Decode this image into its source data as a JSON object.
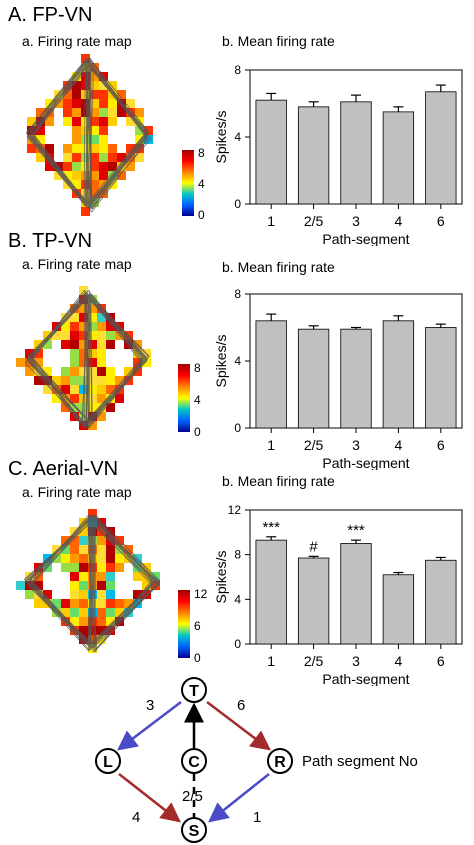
{
  "panels": [
    {
      "title": "A.  FP-VN",
      "map_title": "a.  Firing rate map",
      "bar_title": "b.  Mean firing rate",
      "colorbar": {
        "ticks": [
          "8",
          "4",
          "0"
        ],
        "max": 8
      }
    },
    {
      "title": "B.  TP-VN",
      "map_title": "a.  Firing rate map",
      "bar_title": "b.  Mean firing rate",
      "colorbar": {
        "ticks": [
          "8",
          "4",
          "0"
        ],
        "max": 8
      }
    },
    {
      "title": "C.  Aerial-VN",
      "map_title": "a.  Firing rate map",
      "bar_title": "b.  Mean firing rate",
      "colorbar": {
        "ticks": [
          "12",
          "6",
          "0"
        ],
        "max": 12
      }
    }
  ],
  "chart_data": [
    {
      "type": "bar",
      "categories": [
        "1",
        "2/5",
        "3",
        "4",
        "6"
      ],
      "values": [
        6.2,
        5.8,
        6.1,
        5.5,
        6.7
      ],
      "errors": [
        0.4,
        0.3,
        0.4,
        0.3,
        0.4
      ],
      "annotations": [
        "",
        "",
        "",
        "",
        ""
      ],
      "xlabel": "Path-segment",
      "ylabel": "Spikes/s",
      "ylim": [
        0,
        8
      ],
      "yticks": [
        0,
        4,
        8
      ]
    },
    {
      "type": "bar",
      "categories": [
        "1",
        "2/5",
        "3",
        "4",
        "6"
      ],
      "values": [
        6.4,
        5.9,
        5.9,
        6.4,
        6.0
      ],
      "errors": [
        0.4,
        0.2,
        0.1,
        0.3,
        0.2
      ],
      "annotations": [
        "",
        "",
        "",
        "",
        ""
      ],
      "xlabel": "Path-segment",
      "ylabel": "Spikes/s",
      "ylim": [
        0,
        8
      ],
      "yticks": [
        0,
        4,
        8
      ]
    },
    {
      "type": "bar",
      "categories": [
        "1",
        "2/5",
        "3",
        "4",
        "6"
      ],
      "values": [
        9.3,
        7.7,
        9.0,
        6.2,
        7.5
      ],
      "errors": [
        0.3,
        0.15,
        0.3,
        0.2,
        0.25
      ],
      "annotations": [
        "***",
        "#",
        "***",
        "",
        ""
      ],
      "xlabel": "Path-segment",
      "ylabel": "Spikes/s",
      "ylim": [
        0,
        12
      ],
      "yticks": [
        0,
        4,
        8,
        12
      ]
    }
  ],
  "diagram": {
    "nodes": {
      "top": "T",
      "left": "L",
      "center": "C",
      "right": "R",
      "bottom": "S"
    },
    "edge_labels": {
      "top_left": "3",
      "top_right": "6",
      "bottom_left": "4",
      "bottom_right": "1",
      "center": "2/5"
    },
    "legend": "Path segment No",
    "colors": {
      "blue": "#4b4bc8",
      "red": "#a52a2a",
      "black": "#000000"
    }
  }
}
